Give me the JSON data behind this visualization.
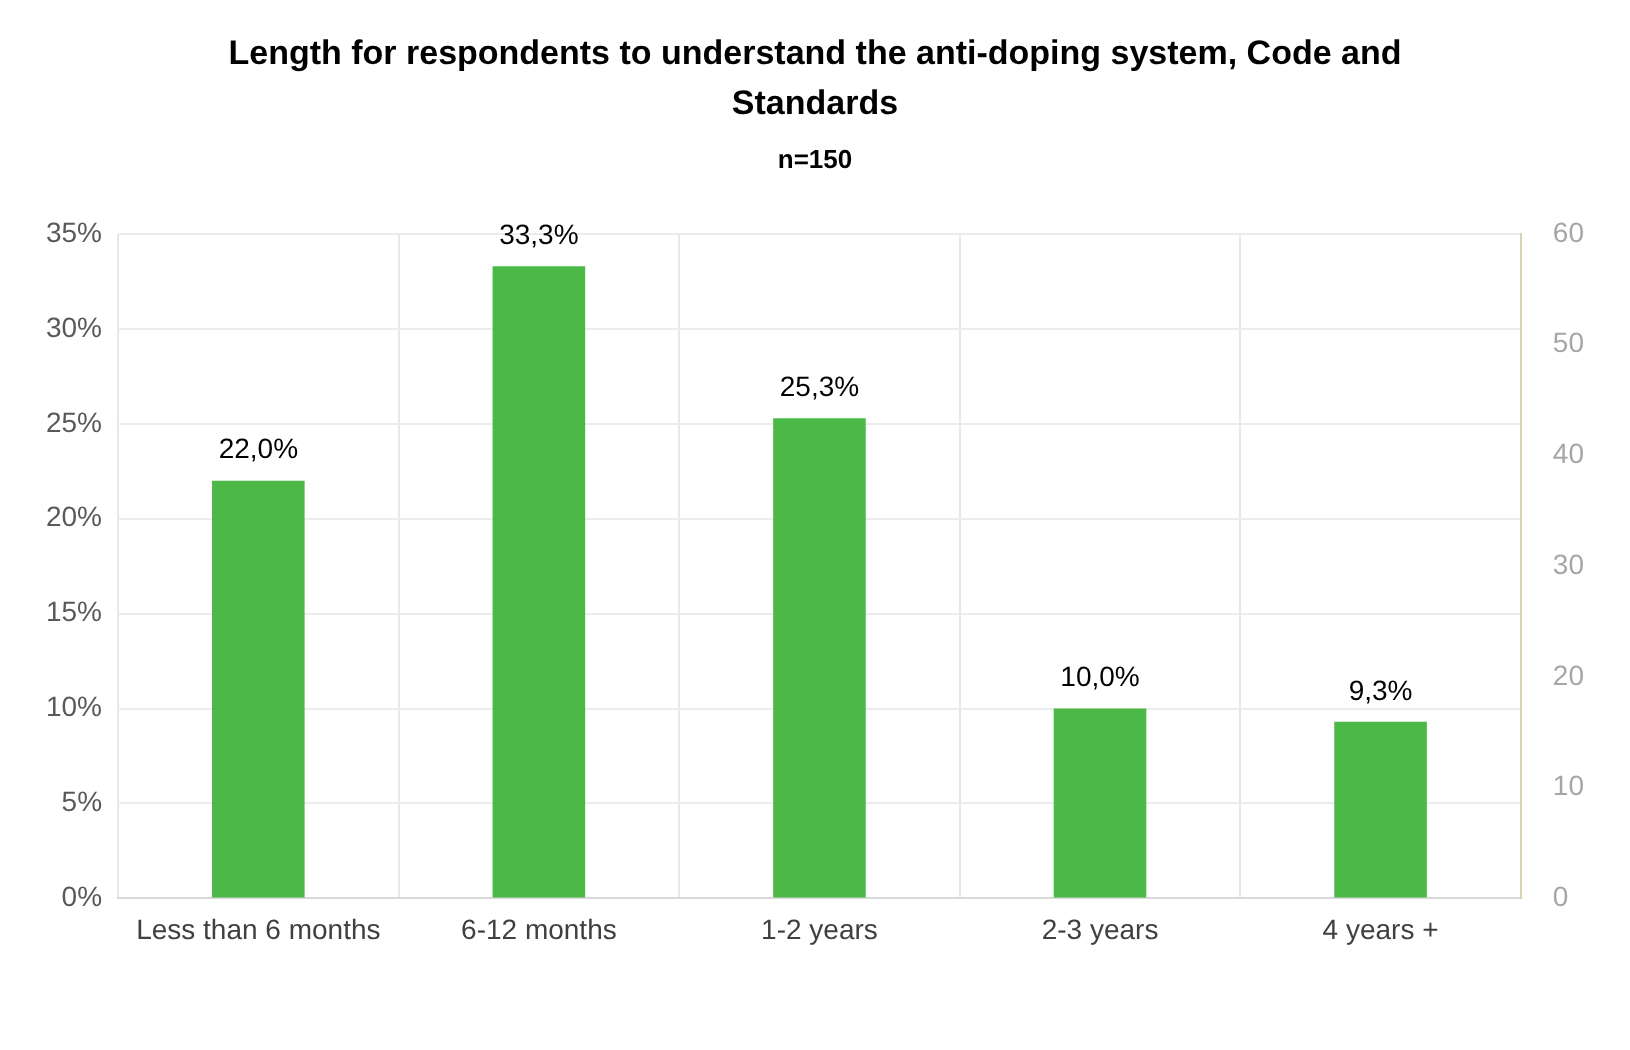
{
  "chart_data": {
    "type": "bar",
    "title": "Length for respondents to understand the anti-doping system, Code and Standards",
    "subtitle": "n=150",
    "categories": [
      "Less than 6 months",
      "6-12 months",
      "1-2 years",
      "2-3 years",
      "4 years +"
    ],
    "values": [
      22.0,
      33.3,
      25.3,
      10.0,
      9.3
    ],
    "color": "#4cb848",
    "value_labels": [
      "22,0%",
      "33,3%",
      "25,3%",
      "10,0%",
      "9,3%"
    ],
    "ylim": [
      0,
      35
    ],
    "yticks": [
      {
        "value": 0,
        "label": "0%"
      },
      {
        "value": 5,
        "label": "5%"
      },
      {
        "value": 10,
        "label": "10%"
      },
      {
        "value": 15,
        "label": "15%"
      },
      {
        "value": 20,
        "label": "20%"
      },
      {
        "value": 25,
        "label": "25%"
      },
      {
        "value": 30,
        "label": "30%"
      },
      {
        "value": 35,
        "label": "35%"
      }
    ],
    "y2lim": [
      0,
      60
    ],
    "y2ticks": [
      0,
      10,
      20,
      30,
      40,
      50,
      60
    ],
    "grid": true
  }
}
